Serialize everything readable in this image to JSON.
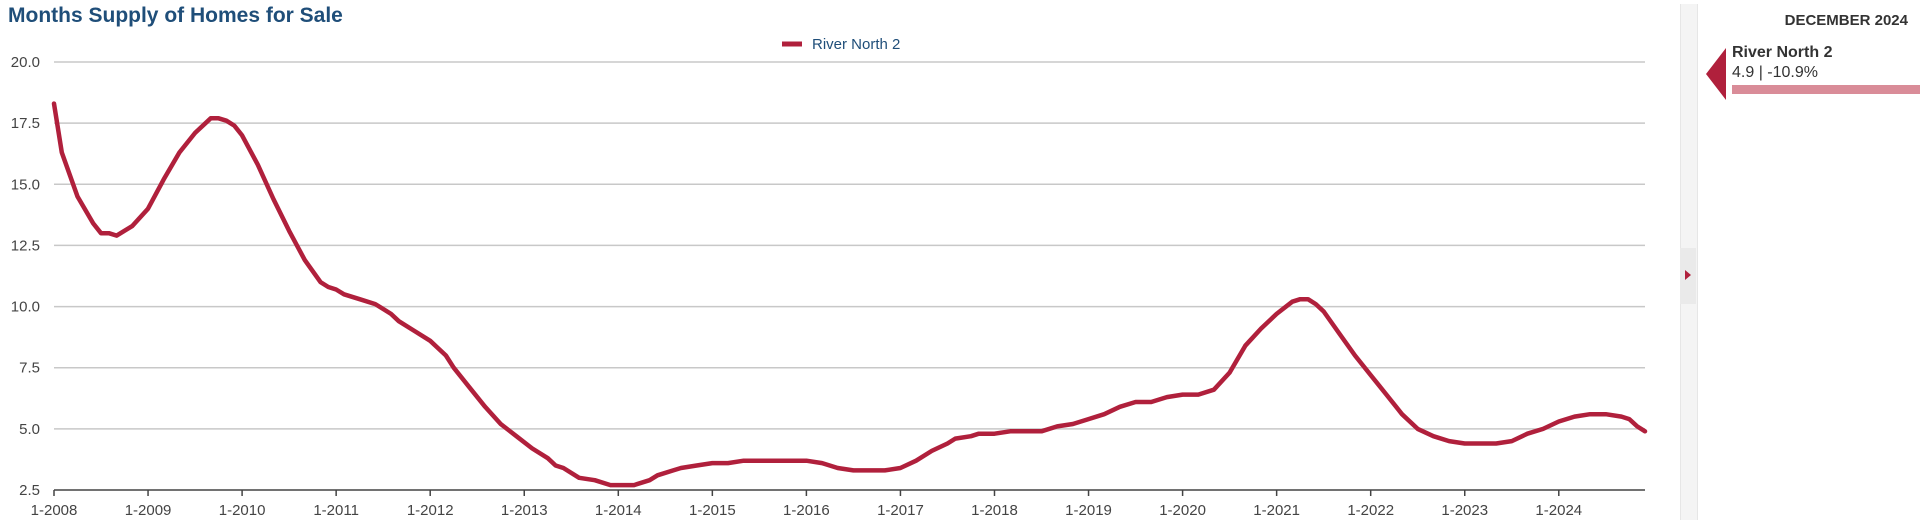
{
  "chart_data": {
    "type": "line",
    "title": "Months Supply of Homes for Sale",
    "xlabel": "",
    "ylabel": "",
    "ylim": [
      2.5,
      20.0
    ],
    "y_ticks": [
      "2.5",
      "5.0",
      "7.5",
      "10.0",
      "12.5",
      "15.0",
      "17.5",
      "20.0"
    ],
    "x_tick_labels": [
      "1-2008",
      "1-2009",
      "1-2010",
      "1-2011",
      "1-2012",
      "1-2013",
      "1-2014",
      "1-2015",
      "1-2016",
      "1-2017",
      "1-2018",
      "1-2019",
      "1-2020",
      "1-2021",
      "1-2022",
      "1-2023",
      "1-2024"
    ],
    "x_range": [
      "1-2008",
      "12-2024"
    ],
    "grid": true,
    "legend_position": "top-center",
    "series": [
      {
        "name": "River North 2",
        "color": "#b0203c",
        "points": [
          [
            "1-2008",
            18.3
          ],
          [
            "2-2008",
            16.3
          ],
          [
            "4-2008",
            14.5
          ],
          [
            "6-2008",
            13.4
          ],
          [
            "7-2008",
            13.0
          ],
          [
            "8-2008",
            13.0
          ],
          [
            "9-2008",
            12.9
          ],
          [
            "11-2008",
            13.3
          ],
          [
            "1-2009",
            14.0
          ],
          [
            "3-2009",
            15.2
          ],
          [
            "5-2009",
            16.3
          ],
          [
            "7-2009",
            17.1
          ],
          [
            "9-2009",
            17.7
          ],
          [
            "10-2009",
            17.7
          ],
          [
            "11-2009",
            17.6
          ],
          [
            "12-2009",
            17.4
          ],
          [
            "1-2010",
            17.0
          ],
          [
            "3-2010",
            15.8
          ],
          [
            "5-2010",
            14.4
          ],
          [
            "7-2010",
            13.1
          ],
          [
            "9-2010",
            11.9
          ],
          [
            "11-2010",
            11.0
          ],
          [
            "12-2010",
            10.8
          ],
          [
            "1-2011",
            10.7
          ],
          [
            "2-2011",
            10.5
          ],
          [
            "4-2011",
            10.3
          ],
          [
            "6-2011",
            10.1
          ],
          [
            "8-2011",
            9.7
          ],
          [
            "9-2011",
            9.4
          ],
          [
            "11-2011",
            9.0
          ],
          [
            "1-2012",
            8.6
          ],
          [
            "2-2012",
            8.3
          ],
          [
            "3-2012",
            8.0
          ],
          [
            "4-2012",
            7.5
          ],
          [
            "6-2012",
            6.7
          ],
          [
            "8-2012",
            5.9
          ],
          [
            "10-2012",
            5.2
          ],
          [
            "12-2012",
            4.7
          ],
          [
            "2-2013",
            4.2
          ],
          [
            "4-2013",
            3.8
          ],
          [
            "5-2013",
            3.5
          ],
          [
            "6-2013",
            3.4
          ],
          [
            "8-2013",
            3.0
          ],
          [
            "10-2013",
            2.9
          ],
          [
            "12-2013",
            2.7
          ],
          [
            "2-2014",
            2.7
          ],
          [
            "3-2014",
            2.7
          ],
          [
            "5-2014",
            2.9
          ],
          [
            "6-2014",
            3.1
          ],
          [
            "8-2014",
            3.3
          ],
          [
            "9-2014",
            3.4
          ],
          [
            "11-2014",
            3.5
          ],
          [
            "1-2015",
            3.6
          ],
          [
            "3-2015",
            3.6
          ],
          [
            "5-2015",
            3.7
          ],
          [
            "9-2015",
            3.7
          ],
          [
            "1-2016",
            3.7
          ],
          [
            "3-2016",
            3.6
          ],
          [
            "5-2016",
            3.4
          ],
          [
            "7-2016",
            3.3
          ],
          [
            "9-2016",
            3.3
          ],
          [
            "11-2016",
            3.3
          ],
          [
            "1-2017",
            3.4
          ],
          [
            "3-2017",
            3.7
          ],
          [
            "5-2017",
            4.1
          ],
          [
            "7-2017",
            4.4
          ],
          [
            "8-2017",
            4.6
          ],
          [
            "10-2017",
            4.7
          ],
          [
            "11-2017",
            4.8
          ],
          [
            "1-2018",
            4.8
          ],
          [
            "3-2018",
            4.9
          ],
          [
            "5-2018",
            4.9
          ],
          [
            "7-2018",
            4.9
          ],
          [
            "9-2018",
            5.1
          ],
          [
            "11-2018",
            5.2
          ],
          [
            "1-2019",
            5.4
          ],
          [
            "3-2019",
            5.6
          ],
          [
            "5-2019",
            5.9
          ],
          [
            "7-2019",
            6.1
          ],
          [
            "9-2019",
            6.1
          ],
          [
            "11-2019",
            6.3
          ],
          [
            "1-2020",
            6.4
          ],
          [
            "3-2020",
            6.4
          ],
          [
            "5-2020",
            6.6
          ],
          [
            "7-2020",
            7.3
          ],
          [
            "9-2020",
            8.4
          ],
          [
            "11-2020",
            9.1
          ],
          [
            "1-2021",
            9.7
          ],
          [
            "3-2021",
            10.2
          ],
          [
            "4-2021",
            10.3
          ],
          [
            "5-2021",
            10.3
          ],
          [
            "6-2021",
            10.1
          ],
          [
            "7-2021",
            9.8
          ],
          [
            "9-2021",
            8.9
          ],
          [
            "11-2021",
            8.0
          ],
          [
            "1-2022",
            7.2
          ],
          [
            "3-2022",
            6.4
          ],
          [
            "5-2022",
            5.6
          ],
          [
            "7-2022",
            5.0
          ],
          [
            "9-2022",
            4.7
          ],
          [
            "11-2022",
            4.5
          ],
          [
            "1-2023",
            4.4
          ],
          [
            "3-2023",
            4.4
          ],
          [
            "5-2023",
            4.4
          ],
          [
            "7-2023",
            4.5
          ],
          [
            "9-2023",
            4.8
          ],
          [
            "11-2023",
            5.0
          ],
          [
            "1-2024",
            5.3
          ],
          [
            "3-2024",
            5.5
          ],
          [
            "5-2024",
            5.6
          ],
          [
            "7-2024",
            5.6
          ],
          [
            "9-2024",
            5.5
          ],
          [
            "10-2024",
            5.4
          ],
          [
            "11-2024",
            5.1
          ],
          [
            "12-2024",
            4.9
          ]
        ]
      }
    ]
  },
  "side_panel": {
    "date_label": "DECEMBER 2024",
    "marker": {
      "name": "River North 2",
      "value_text": "4.9 | -10.9%",
      "color": "#b0203c",
      "bar_color": "#d98c98"
    }
  },
  "collapse_handle": {
    "icon": "caret-right-icon"
  }
}
